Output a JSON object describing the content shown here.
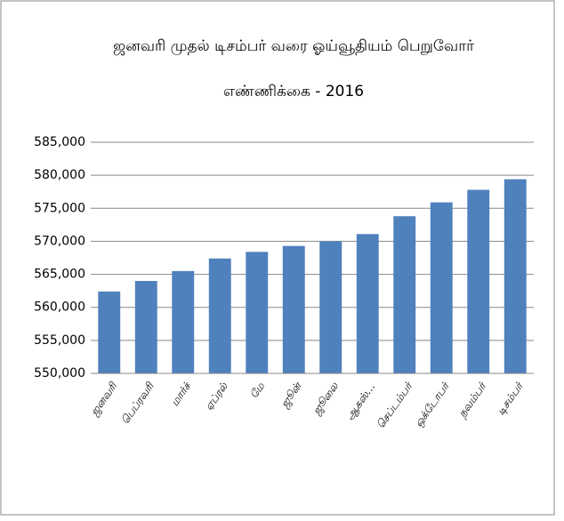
{
  "chart_data": {
    "type": "bar",
    "title": [
      "ஜனவரி முதல் டிசம்பர் வரை ஓய்வூதியம் பெறுவோர்",
      "எண்ணிக்கை - 2016"
    ],
    "categories": [
      "ஜனவரி",
      "பெப்ரவரி",
      "மார்ச்",
      "ஏப்ரல்",
      "மே",
      "ஜூன்",
      "ஜூலை",
      "ஆகஸ்…",
      "செப்டம்பர்",
      "ஒக்டோபர்",
      "நவம்பர்",
      "டிசம்பர்"
    ],
    "values": [
      562400,
      564000,
      565500,
      567400,
      568400,
      569300,
      570000,
      571100,
      573800,
      575900,
      577800,
      579400
    ],
    "color": "#4f81bd",
    "ylim": [
      550000,
      585000
    ],
    "yticks": [
      {
        "value": 550000,
        "label": "550,000"
      },
      {
        "value": 555000,
        "label": "555,000"
      },
      {
        "value": 560000,
        "label": "560,000"
      },
      {
        "value": 565000,
        "label": "565,000"
      },
      {
        "value": 570000,
        "label": "570,000"
      },
      {
        "value": 575000,
        "label": "575,000"
      },
      {
        "value": 580000,
        "label": "580,000"
      },
      {
        "value": 585000,
        "label": "585,000"
      }
    ],
    "grid": true
  }
}
